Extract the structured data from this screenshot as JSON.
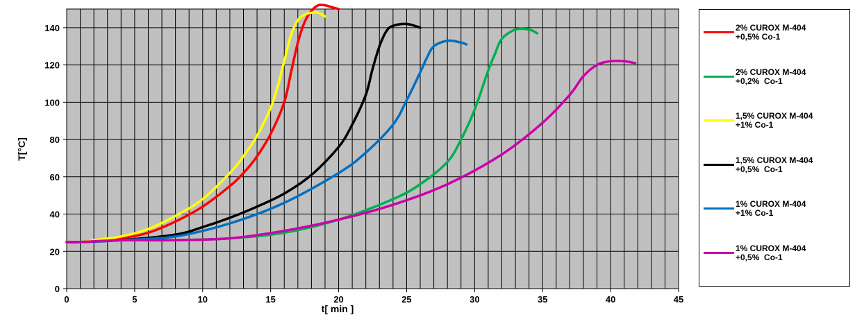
{
  "chart_data": {
    "type": "line",
    "title": "",
    "xlabel": "t[ min ]",
    "ylabel": "T[°C]",
    "xlim": [
      0,
      45
    ],
    "ylim": [
      0,
      150
    ],
    "xticks": [
      "0",
      "5",
      "10",
      "15",
      "20",
      "25",
      "30",
      "35",
      "40",
      "45"
    ],
    "yticks": [
      "0",
      "20",
      "40",
      "60",
      "80",
      "100",
      "120",
      "140"
    ],
    "grid": true,
    "plot_background": "#c0c0c0",
    "legend_position": "right",
    "series": [
      {
        "name_line1": "2% CUROX M-404",
        "name_line2": "+0,5% Co-1",
        "color": "#ff0000",
        "x": [
          0,
          1,
          2,
          4,
          6,
          8,
          10,
          12,
          13,
          14,
          15,
          16,
          16.5,
          17,
          17.5,
          18,
          18.5,
          19,
          19.5,
          20
        ],
        "y": [
          25,
          25,
          26,
          27,
          30,
          36,
          44,
          55,
          62,
          71,
          83,
          100,
          116,
          132,
          143,
          149,
          152,
          152,
          151,
          150
        ]
      },
      {
        "name_line1": "2% CUROX M-404",
        "name_line2": "+0,2%  Co-1",
        "color": "#00b050",
        "x": [
          0,
          1,
          4,
          8,
          12,
          16,
          20,
          24,
          26,
          28,
          29,
          30,
          31,
          31.5,
          32,
          33,
          34,
          34.6
        ],
        "y": [
          25,
          25,
          26,
          26,
          27,
          30,
          37,
          48,
          56,
          68,
          80,
          96,
          117,
          126,
          134,
          139,
          139,
          137
        ]
      },
      {
        "name_line1": "1,5% CUROX M-404",
        "name_line2": "+1% Co-1",
        "color": "#ffff00",
        "x": [
          0,
          1,
          2,
          4,
          6,
          8,
          10,
          12,
          13,
          14,
          15,
          15.5,
          16,
          16.5,
          17,
          17.5,
          18,
          18.5,
          19
        ],
        "y": [
          25,
          25,
          26,
          28,
          32,
          39,
          48,
          62,
          71,
          82,
          97,
          108,
          122,
          136,
          144,
          147,
          148,
          148,
          146
        ]
      },
      {
        "name_line1": "1,5% CUROX M-404",
        "name_line2": "+0,5%  Co-1",
        "color": "#000000",
        "x": [
          0,
          1,
          4,
          8,
          10,
          12,
          14,
          16,
          18,
          20,
          21,
          22,
          22.5,
          23,
          23.5,
          24,
          25,
          26
        ],
        "y": [
          25,
          25,
          26,
          29,
          33,
          38,
          44,
          51,
          61,
          76,
          88,
          104,
          118,
          130,
          138,
          141,
          142,
          140
        ]
      },
      {
        "name_line1": "1% CUROX M-404",
        "name_line2": "+1% Co-1",
        "color": "#0070c0",
        "x": [
          0,
          1,
          4,
          8,
          12,
          16,
          20,
          22,
          24,
          25,
          26,
          26.5,
          27,
          28,
          29,
          29.4
        ],
        "y": [
          25,
          25,
          26,
          28,
          35,
          46,
          62,
          73,
          88,
          101,
          116,
          124,
          130,
          133,
          132,
          131
        ]
      },
      {
        "name_line1": "1% CUROX M-404",
        "name_line2": "+0,5%  Co-1",
        "color": "#cc00aa",
        "x": [
          0,
          1,
          4,
          8,
          12,
          16,
          20,
          24,
          28,
          32,
          35,
          37,
          38,
          39,
          40,
          41,
          41.8
        ],
        "y": [
          25,
          25,
          26,
          26,
          27,
          31,
          37,
          45,
          56,
          72,
          89,
          104,
          114,
          120,
          122,
          122,
          121
        ]
      }
    ]
  }
}
